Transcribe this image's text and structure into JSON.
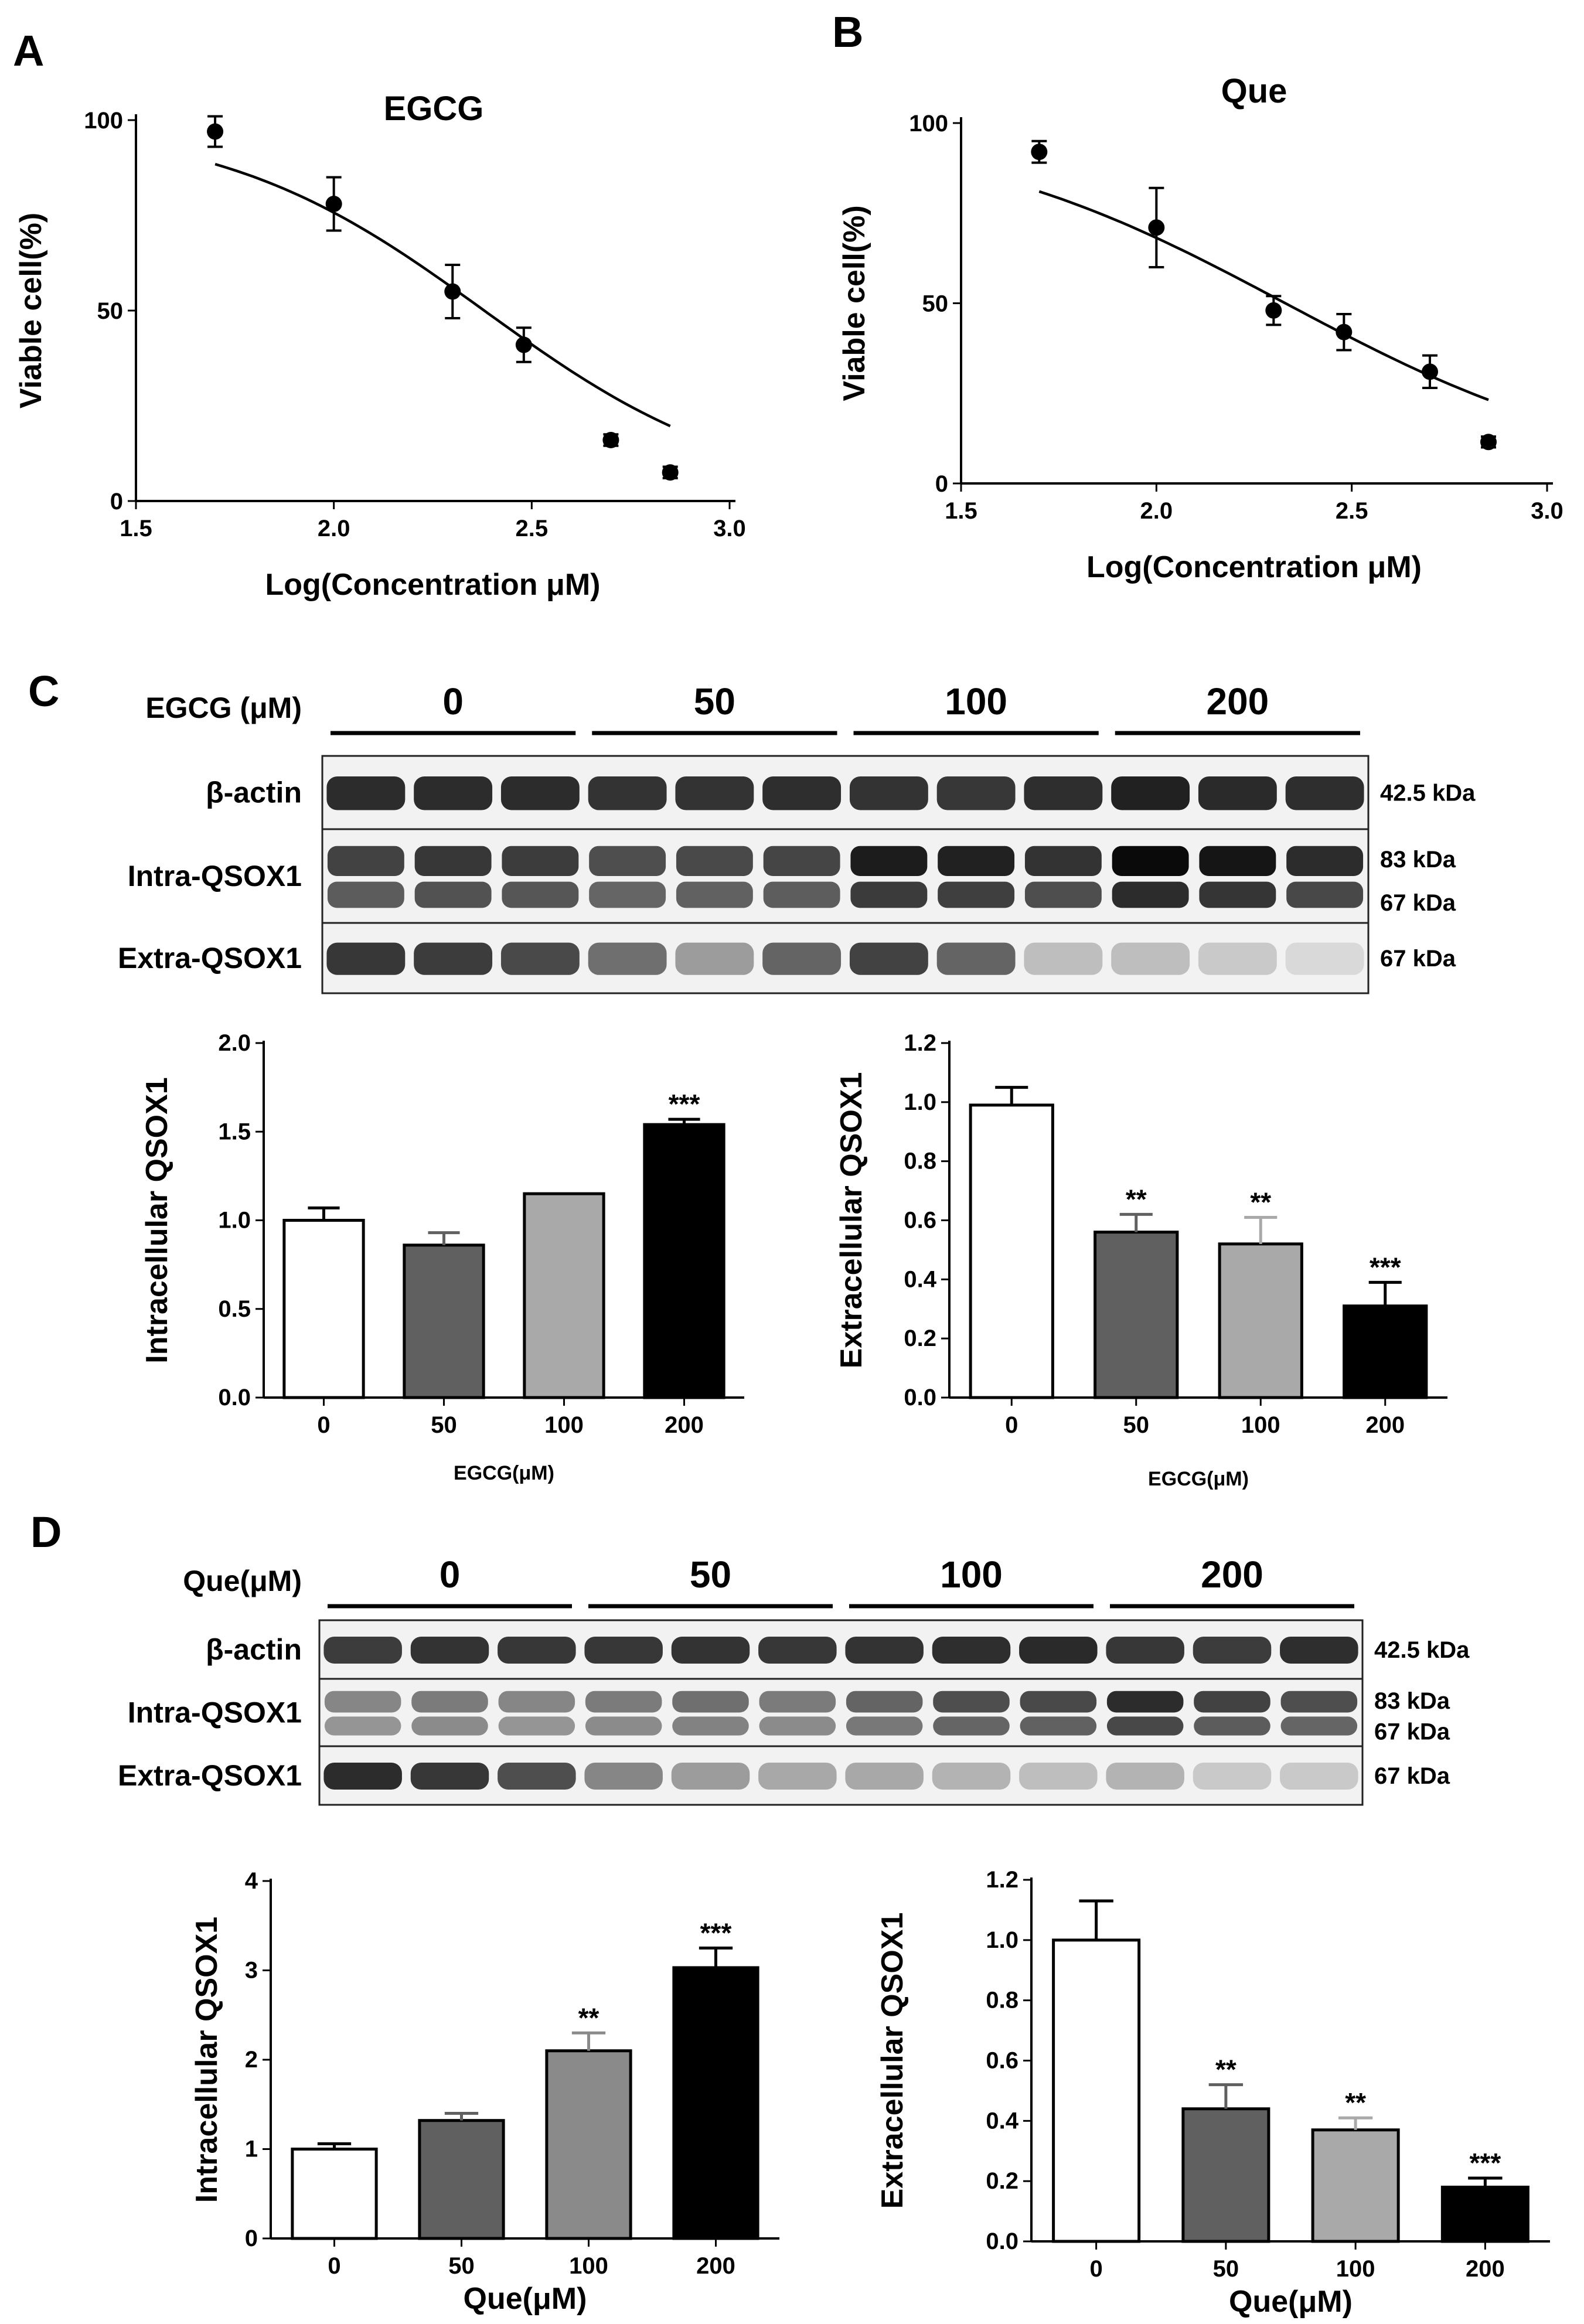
{
  "panels": [
    "A",
    "B",
    "C",
    "D"
  ],
  "chart_data": [
    {
      "id": "A",
      "type": "scatter",
      "fit": "dose-response curve",
      "title": "EGCG",
      "xlabel": "Log(Concentration μM)",
      "ylabel": "Viable cell(%)",
      "xlim": [
        1.5,
        3.0
      ],
      "ylim": [
        0,
        100
      ],
      "xticks": [
        "1.5",
        "2.0",
        "2.5",
        "3.0"
      ],
      "yticks": [
        "0",
        "50",
        "100"
      ],
      "x": [
        1.7,
        2.0,
        2.3,
        2.48,
        2.7,
        2.85
      ],
      "y": [
        97,
        78,
        55,
        41,
        16,
        7.5
      ],
      "err": [
        4,
        7,
        7,
        4.5,
        1.5,
        1.5
      ],
      "curve": {
        "top": 100,
        "bottom": 0,
        "logIC50": 2.38,
        "hill": 1.3
      }
    },
    {
      "id": "B",
      "type": "scatter",
      "fit": "dose-response curve",
      "title": "Que",
      "xlabel": "Log(Concentration μM)",
      "ylabel": "Viable cell(%)",
      "xlim": [
        1.5,
        3.0
      ],
      "ylim": [
        0,
        100
      ],
      "xticks": [
        "1.5",
        "2.0",
        "2.5",
        "3.0"
      ],
      "yticks": [
        "0",
        "50",
        "100"
      ],
      "x": [
        1.7,
        2.0,
        2.3,
        2.48,
        2.7,
        2.85
      ],
      "y": [
        92,
        71,
        48,
        42,
        31,
        11.5
      ],
      "err": [
        3,
        11,
        4,
        5,
        4.5,
        1.5
      ],
      "curve": {
        "top": 100,
        "bottom": 0,
        "logIC50": 2.33,
        "hill": 1.0
      }
    },
    {
      "id": "C-intra",
      "type": "bar",
      "xlabel": "EGCG(μM)",
      "ylabel": "Intracellular QSOX1",
      "categories": [
        "0",
        "50",
        "100",
        "200"
      ],
      "values": [
        1.0,
        0.86,
        1.15,
        1.54
      ],
      "err": [
        0.07,
        0.07,
        0,
        0.03
      ],
      "sig": [
        "",
        "",
        "",
        "***"
      ],
      "fills": [
        "#ffffff",
        "#606060",
        "#a9a9a9",
        "#000000"
      ],
      "ylim": [
        0,
        2.0
      ],
      "yticks": [
        "0.0",
        "0.5",
        "1.0",
        "1.5",
        "2.0"
      ]
    },
    {
      "id": "C-extra",
      "type": "bar",
      "xlabel": "EGCG(μM)",
      "ylabel": "Extracellular QSOX1",
      "categories": [
        "0",
        "50",
        "100",
        "200"
      ],
      "values": [
        0.99,
        0.56,
        0.52,
        0.31
      ],
      "err": [
        0.06,
        0.06,
        0.09,
        0.08
      ],
      "sig": [
        "",
        "**",
        "**",
        "***"
      ],
      "fills": [
        "#ffffff",
        "#606060",
        "#a9a9a9",
        "#000000"
      ],
      "ylim": [
        0,
        1.2
      ],
      "yticks": [
        "0.0",
        "0.2",
        "0.4",
        "0.6",
        "0.8",
        "1.0",
        "1.2"
      ]
    },
    {
      "id": "D-intra",
      "type": "bar",
      "xlabel": "Que(μM)",
      "ylabel": "Intracellular QSOX1",
      "categories": [
        "0",
        "50",
        "100",
        "200"
      ],
      "values": [
        1.0,
        1.32,
        2.1,
        3.03
      ],
      "err": [
        0.06,
        0.08,
        0.2,
        0.22
      ],
      "sig": [
        "",
        "",
        "**",
        "***"
      ],
      "fills": [
        "#ffffff",
        "#606060",
        "#8a8a8a",
        "#000000"
      ],
      "ylim": [
        0,
        4
      ],
      "yticks": [
        "0",
        "1",
        "2",
        "3",
        "4"
      ]
    },
    {
      "id": "D-extra",
      "type": "bar",
      "xlabel": "Que(μM)",
      "ylabel": "Extracellular QSOX1",
      "categories": [
        "0",
        "50",
        "100",
        "200"
      ],
      "values": [
        1.0,
        0.44,
        0.37,
        0.18
      ],
      "err": [
        0.13,
        0.08,
        0.04,
        0.03
      ],
      "sig": [
        "",
        "**",
        "**",
        "***"
      ],
      "fills": [
        "#ffffff",
        "#606060",
        "#a9a9a9",
        "#000000"
      ],
      "ylim": [
        0,
        1.2
      ],
      "yticks": [
        "0.0",
        "0.2",
        "0.4",
        "0.6",
        "0.8",
        "1.0",
        "1.2"
      ]
    }
  ],
  "blots": [
    {
      "id": "C",
      "treatment_label": "EGCG (μM)",
      "doses": [
        "0",
        "50",
        "100",
        "200"
      ],
      "rows": [
        {
          "label": "β-actin",
          "kda": [
            "42.5 kDa"
          ]
        },
        {
          "label": "Intra-QSOX1",
          "kda": [
            "83 kDa",
            "67 kDa"
          ]
        },
        {
          "label": "Extra-QSOX1",
          "kda": [
            "67 kDa"
          ]
        }
      ],
      "intensity": [
        [
          0.85,
          0.85,
          0.85,
          0.82,
          0.82,
          0.84,
          0.82,
          0.8,
          0.84,
          0.9,
          0.86,
          0.84
        ],
        [
          0.75,
          0.8,
          0.78,
          0.7,
          0.72,
          0.74,
          0.92,
          0.9,
          0.82,
          1.0,
          0.95,
          0.85
        ],
        [
          0.8,
          0.78,
          0.72,
          0.55,
          0.35,
          0.6,
          0.75,
          0.6,
          0.2,
          0.2,
          0.15,
          0.08
        ]
      ]
    },
    {
      "id": "D",
      "treatment_label": "Que(μM)",
      "doses": [
        "0",
        "50",
        "100",
        "200"
      ],
      "rows": [
        {
          "label": "β-actin",
          "kda": [
            "42.5 kDa"
          ]
        },
        {
          "label": "Intra-QSOX1",
          "kda": [
            "83 kDa",
            "67 kDa"
          ]
        },
        {
          "label": "Extra-QSOX1",
          "kda": [
            "67 kDa"
          ]
        }
      ],
      "intensity": [
        [
          0.78,
          0.82,
          0.8,
          0.8,
          0.82,
          0.8,
          0.82,
          0.84,
          0.86,
          0.8,
          0.78,
          0.84
        ],
        [
          0.45,
          0.5,
          0.45,
          0.5,
          0.55,
          0.5,
          0.6,
          0.7,
          0.72,
          0.85,
          0.75,
          0.7
        ],
        [
          0.85,
          0.8,
          0.7,
          0.45,
          0.35,
          0.3,
          0.3,
          0.25,
          0.2,
          0.25,
          0.15,
          0.15
        ]
      ]
    }
  ]
}
